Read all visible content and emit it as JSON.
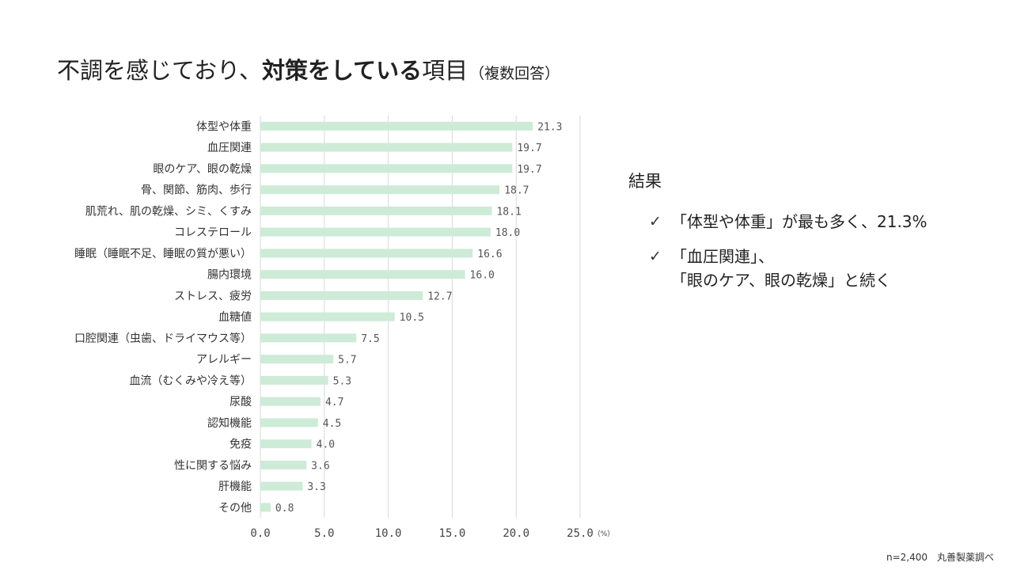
{
  "title": {
    "part1": "不調を感じており、",
    "part2": "対策をしている",
    "part3": "項目",
    "part4": "（複数回答）"
  },
  "chart_data": {
    "type": "bar",
    "orientation": "horizontal",
    "categories": [
      "体型や体重",
      "血圧関連",
      "眼のケア、眼の乾燥",
      "骨、関節、筋肉、歩行",
      "肌荒れ、肌の乾燥、シミ、くすみ",
      "コレステロール",
      "睡眠（睡眠不足、睡眠の質が悪い）",
      "腸内環境",
      "ストレス、疲労",
      "血糖値",
      "口腔関連（虫歯、ドライマウス等）",
      "アレルギー",
      "血流（むくみや冷え等）",
      "尿酸",
      "認知機能",
      "免疫",
      "性に関する悩み",
      "肝機能",
      "その他"
    ],
    "values": [
      21.3,
      19.7,
      19.7,
      18.7,
      18.1,
      18.0,
      16.6,
      16.0,
      12.7,
      10.5,
      7.5,
      5.7,
      5.3,
      4.7,
      4.5,
      4.0,
      3.6,
      3.3,
      0.8
    ],
    "value_labels": [
      "21.3",
      "19.7",
      "19.7",
      "18.7",
      "18.1",
      "18.0",
      "16.6",
      "16.0",
      "12.7",
      "10.5",
      "7.5",
      "5.7",
      "5.3",
      "4.7",
      "4.5",
      "4.0",
      "3.6",
      "3.3",
      "0.8"
    ],
    "x_ticks": [
      "0.0",
      "5.0",
      "10.0",
      "15.0",
      "20.0",
      "25.0"
    ],
    "x_tick_values": [
      0,
      5,
      10,
      15,
      20,
      25
    ],
    "xlim": [
      0,
      25
    ],
    "unit_label": "（%）",
    "grid": true,
    "bar_color": "#cdebd6",
    "grid_color": "#d9d9d9",
    "label_color": "#555555"
  },
  "results": {
    "heading": "結果",
    "check_symbol": "✓",
    "bullet1": "「体型や体重」が最も多く、21.3%",
    "bullet2_line1": "「血圧関連」、",
    "bullet2_line2": "「眼のケア、眼の乾燥」と続く"
  },
  "footer": {
    "sample": "n=2,400",
    "source": "丸善製薬調べ"
  }
}
